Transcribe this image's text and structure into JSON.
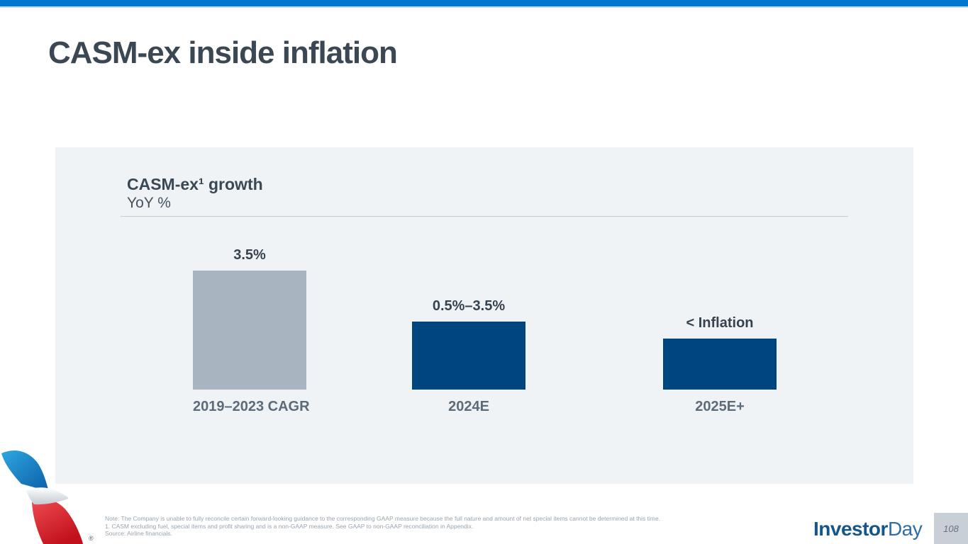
{
  "slide": {
    "title": "CASM-ex inside inflation",
    "page_number": "108"
  },
  "chart": {
    "title": "CASM-ex¹ growth",
    "subtitle": "YoY %"
  },
  "chart_data": {
    "type": "bar",
    "title": "CASM-ex¹ growth",
    "ylabel": "YoY %",
    "categories": [
      "2019–2023 CAGR",
      "2024E",
      "2025E+"
    ],
    "value_labels": [
      "3.5%",
      "0.5%–3.5%",
      "< Inflation"
    ],
    "values": [
      3.5,
      2.0,
      1.5
    ],
    "bar_colors": [
      "#a8b5c0",
      "#00467e",
      "#00467e"
    ],
    "ylim": [
      0,
      4
    ],
    "grid": false,
    "legend": "none"
  },
  "footer": {
    "notes": [
      "Note: The Company is unable to fully reconcile certain forward-looking guidance to the corresponding GAAP measure because the full nature and amount of net special items cannot be determined at this time.",
      "1. CASM excluding fuel, special items and profit sharing and is a non-GAAP measure. See GAAP to non-GAAP reconciliation in Appendix.",
      "Source: Airline financials."
    ],
    "brand_bold": "Investor",
    "brand_light": "Day",
    "registered_mark": "®"
  },
  "colors": {
    "top_stripe": "#0078d2",
    "panel_bg": "#f0f3f5",
    "navy_bar": "#00467e",
    "gray_bar": "#a8b5c0",
    "title_text": "#3b4854"
  }
}
